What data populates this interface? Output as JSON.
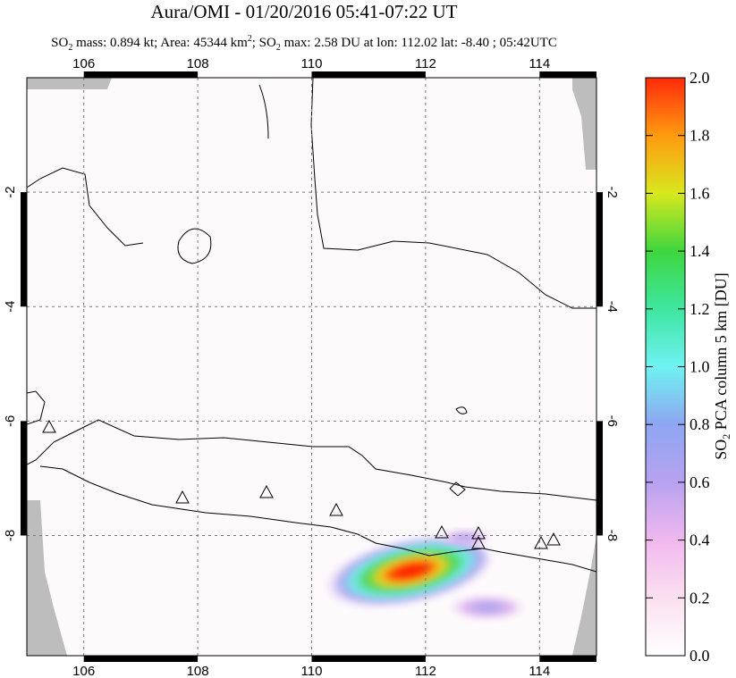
{
  "chart_data": {
    "type": "map",
    "title": "Aura/OMI - 01/20/2016 05:41-07:22 UT",
    "subtitle_parts": [
      "SO",
      "2",
      " mass: 0.894 kt; Area: 45344 km",
      "2",
      "; SO",
      "2",
      " max: 2.58 DU at lon: 112.02 lat: -8.40 ; 05:42UTC"
    ],
    "xlim": [
      105,
      115
    ],
    "ylim": [
      -10.1,
      0
    ],
    "xticks": [
      106,
      108,
      110,
      112,
      114
    ],
    "yticks": [
      -2,
      -4,
      -6,
      -8
    ],
    "grid": true,
    "colorbar": {
      "lim": [
        0,
        2
      ],
      "ticks": [
        {
          "value": 0,
          "label": "0.0"
        },
        0.2,
        0.4,
        0.6,
        0.8,
        {
          "value": 1,
          "label": "1.0"
        },
        1.2,
        1.4,
        1.6,
        1.8,
        {
          "value": 2,
          "label": "2.0"
        }
      ],
      "label_parts": [
        "SO",
        "2",
        " PCA column 5 km [DU]"
      ]
    }
  }
}
